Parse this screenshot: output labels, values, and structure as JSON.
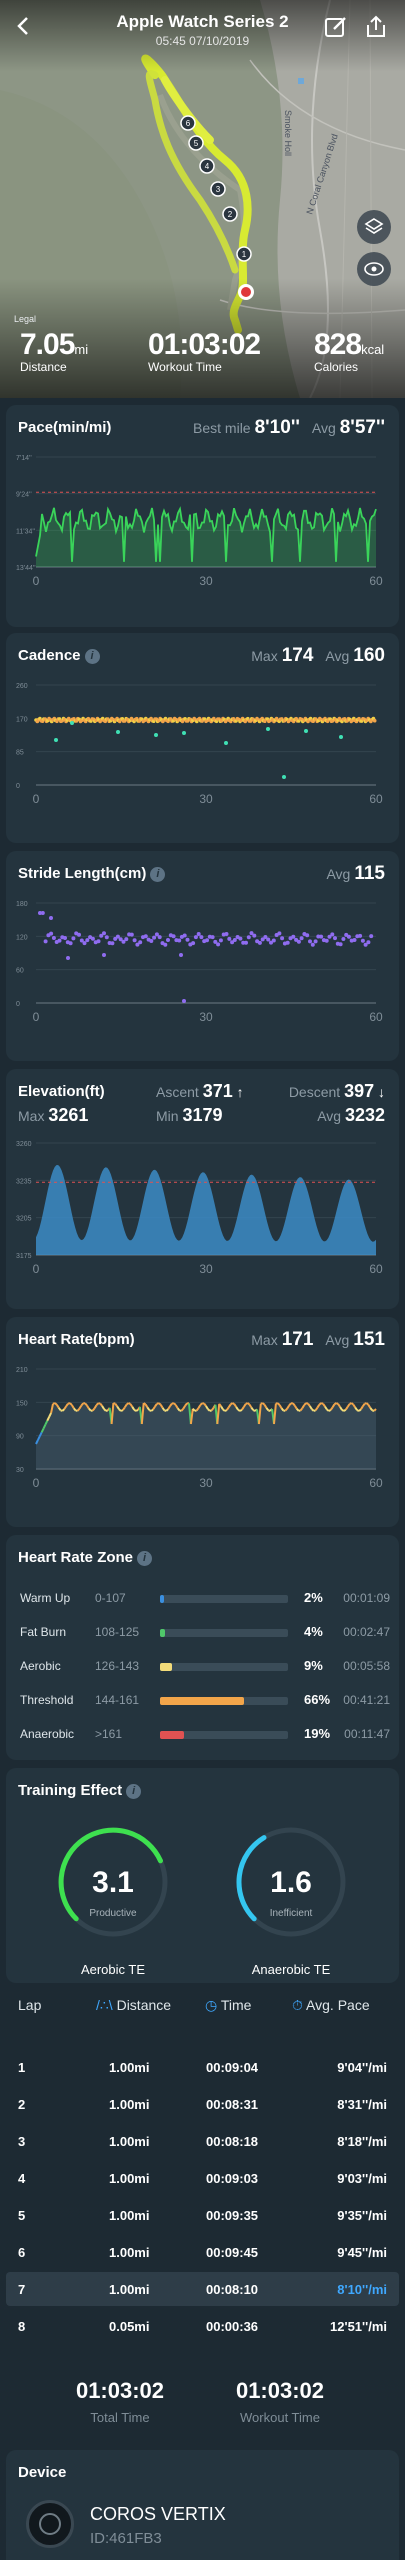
{
  "header": {
    "title": "Apple Watch Series 2",
    "subtitle": "05:45 07/10/2019"
  },
  "map": {
    "legal": "Legal",
    "road_labels": [
      "Smoke Holl",
      "N Coral Canyon Blvd"
    ],
    "lap_markers": [
      "6",
      "5",
      "4",
      "3",
      "2",
      "1"
    ]
  },
  "summary": [
    {
      "value": "7.05",
      "unit": "mi",
      "label": "Distance"
    },
    {
      "value": "01:03:02",
      "unit": "",
      "label": "Workout Time"
    },
    {
      "value": "828",
      "unit": "kcal",
      "label": "Calories"
    }
  ],
  "pace": {
    "title": "Pace(min/mi)",
    "best_label": "Best mile",
    "best": "8'10''",
    "avg_label": "Avg",
    "avg": "8'57''",
    "y_ticks": [
      "7'14''",
      "9'24''",
      "11'34''",
      "13'44''"
    ],
    "x_ticks": [
      "0",
      "30",
      "60"
    ],
    "color": "#3ad45a"
  },
  "cadence": {
    "title": "Cadence",
    "max_label": "Max",
    "max": "174",
    "avg_label": "Avg",
    "avg": "160",
    "y_ticks": [
      "260",
      "170",
      "85",
      "0"
    ],
    "x_ticks": [
      "0",
      "30",
      "60"
    ]
  },
  "stride": {
    "title": "Stride Length(cm)",
    "avg_label": "Avg",
    "avg": "115",
    "y_ticks": [
      "180",
      "120",
      "60",
      "0"
    ],
    "x_ticks": [
      "0",
      "30",
      "60"
    ],
    "color": "#8f6cf0"
  },
  "elevation": {
    "title": "Elevation(ft)",
    "ascent_label": "Ascent",
    "ascent": "371",
    "descent_label": "Descent",
    "descent": "397",
    "max_label": "Max",
    "max": "3261",
    "min_label": "Min",
    "min": "3179",
    "avg_label": "Avg",
    "avg": "3232",
    "y_ticks": [
      "3260",
      "3235",
      "3205",
      "3175"
    ],
    "x_ticks": [
      "0",
      "30",
      "60"
    ]
  },
  "heart_rate": {
    "title": "Heart Rate(bpm)",
    "max_label": "Max",
    "max": "171",
    "avg_label": "Avg",
    "avg": "151",
    "y_ticks": [
      "210",
      "150",
      "90",
      "30"
    ],
    "x_ticks": [
      "0",
      "30",
      "60"
    ]
  },
  "hr_zone": {
    "title": "Heart Rate Zone",
    "zones": [
      {
        "name": "Warm Up",
        "range": "0-107",
        "percent": "2%",
        "fraction": 0.02,
        "time": "00:01:09",
        "color": "#3a8fe0"
      },
      {
        "name": "Fat Burn",
        "range": "108-125",
        "percent": "4%",
        "fraction": 0.04,
        "time": "00:02:47",
        "color": "#4fc76a"
      },
      {
        "name": "Aerobic",
        "range": "126-143",
        "percent": "9%",
        "fraction": 0.09,
        "time": "00:05:58",
        "color": "#f3dc7a"
      },
      {
        "name": "Threshold",
        "range": "144-161",
        "percent": "66%",
        "fraction": 0.66,
        "time": "00:41:21",
        "color": "#f2a54a"
      },
      {
        "name": "Anaerobic",
        "range": ">161",
        "percent": "19%",
        "fraction": 0.19,
        "time": "00:11:47",
        "color": "#e05252"
      }
    ]
  },
  "training_effect": {
    "title": "Training Effect",
    "aerobic": {
      "value": "3.1",
      "status": "Productive",
      "label": "Aerobic TE",
      "fraction": 0.62,
      "color": "#3ee04f"
    },
    "anaerobic": {
      "value": "1.6",
      "status": "Inefficient",
      "label": "Anaerobic TE",
      "fraction": 0.32,
      "color": "#34c6f0"
    }
  },
  "laps": {
    "headers": {
      "lap": "Lap",
      "distance": "Distance",
      "time": "Time",
      "pace": "Avg. Pace"
    },
    "rows": [
      {
        "lap": "1",
        "distance": "1.00mi",
        "time": "00:09:04",
        "pace": "9'04''/mi"
      },
      {
        "lap": "2",
        "distance": "1.00mi",
        "time": "00:08:31",
        "pace": "8'31''/mi"
      },
      {
        "lap": "3",
        "distance": "1.00mi",
        "time": "00:08:18",
        "pace": "8'18''/mi"
      },
      {
        "lap": "4",
        "distance": "1.00mi",
        "time": "00:09:03",
        "pace": "9'03''/mi"
      },
      {
        "lap": "5",
        "distance": "1.00mi",
        "time": "00:09:35",
        "pace": "9'35''/mi"
      },
      {
        "lap": "6",
        "distance": "1.00mi",
        "time": "00:09:45",
        "pace": "9'45''/mi"
      },
      {
        "lap": "7",
        "distance": "1.00mi",
        "time": "00:08:10",
        "pace": "8'10''/mi"
      },
      {
        "lap": "8",
        "distance": "0.05mi",
        "time": "00:00:36",
        "pace": "12'51''/mi"
      }
    ],
    "highlight_index": 6,
    "highlight_color": "#3fa8ff"
  },
  "totals": {
    "total_time": "01:03:02",
    "total_label": "Total Time",
    "workout_time": "01:03:02",
    "workout_label": "Workout Time"
  },
  "device": {
    "title": "Device",
    "name": "COROS VERTIX",
    "id": "ID:461FB3"
  }
}
